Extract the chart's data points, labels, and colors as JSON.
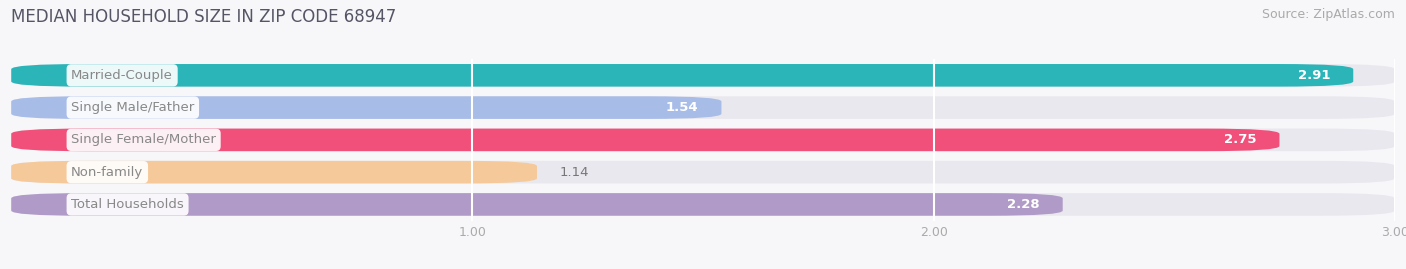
{
  "title": "MEDIAN HOUSEHOLD SIZE IN ZIP CODE 68947",
  "source": "Source: ZipAtlas.com",
  "categories": [
    "Married-Couple",
    "Single Male/Father",
    "Single Female/Mother",
    "Non-family",
    "Total Households"
  ],
  "values": [
    2.91,
    1.54,
    2.75,
    1.14,
    2.28
  ],
  "bar_colors": [
    "#2bb5b8",
    "#a8bce8",
    "#f0507a",
    "#f5c99a",
    "#b09ac8"
  ],
  "bar_background": "#e8e8ee",
  "xlim": [
    0,
    3.0
  ],
  "xticks": [
    1.0,
    2.0,
    3.0
  ],
  "label_fontsize": 9.5,
  "value_fontsize": 9.5,
  "title_fontsize": 12,
  "source_fontsize": 9,
  "background_color": "#f7f7f9",
  "label_text_color": "#888888",
  "bar_gap": 0.18,
  "bar_height": 0.7
}
